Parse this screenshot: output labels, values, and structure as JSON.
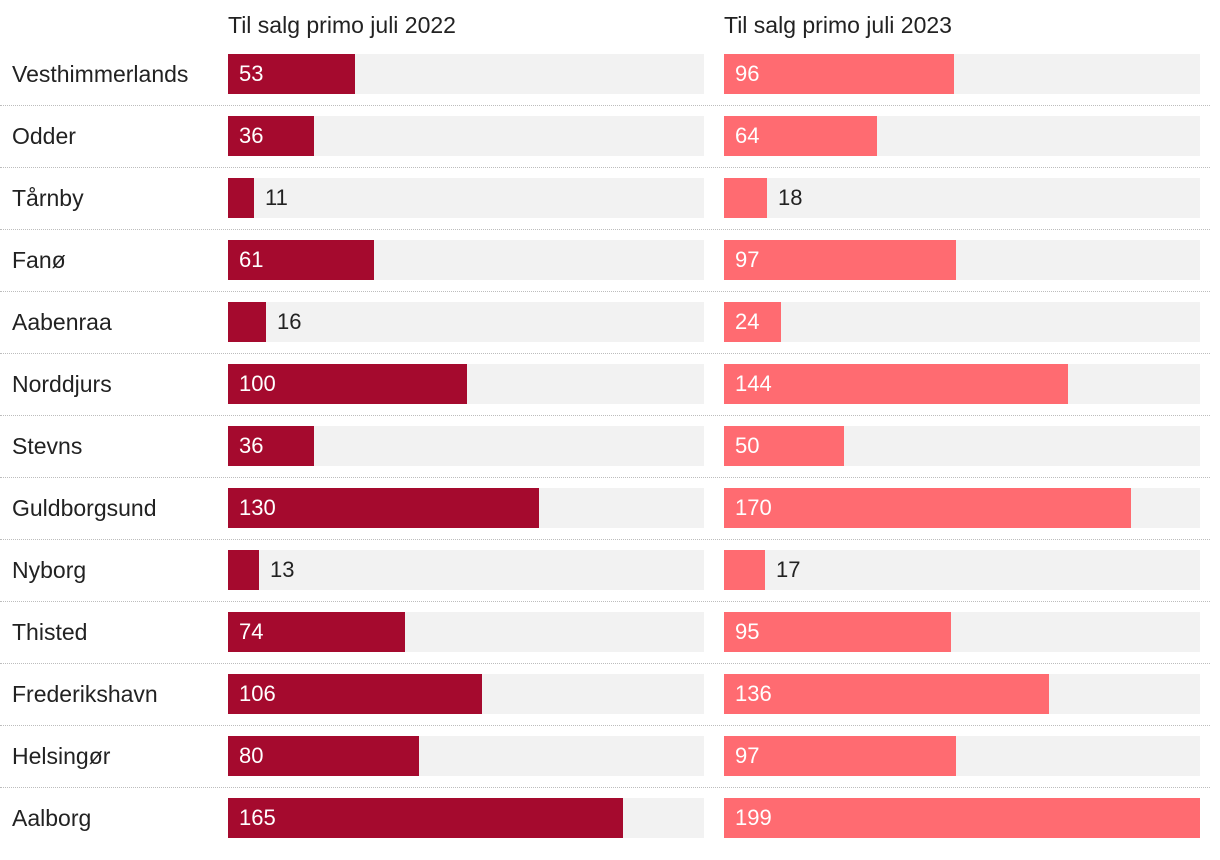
{
  "chart_data": {
    "type": "bar",
    "orientation": "horizontal",
    "title": "",
    "categories": [
      "Vesthimmerlands",
      "Odder",
      "Tårnby",
      "Fanø",
      "Aabenraa",
      "Norddjurs",
      "Stevns",
      "Guldborgsund",
      "Nyborg",
      "Thisted",
      "Frederikshavn",
      "Helsingør",
      "Aalborg"
    ],
    "series": [
      {
        "name": "Til salg primo juli 2022",
        "color": "#a50a2e",
        "values": [
          53,
          36,
          11,
          61,
          16,
          100,
          36,
          130,
          13,
          74,
          106,
          80,
          165
        ]
      },
      {
        "name": "Til salg primo juli 2023",
        "color": "#ff6b71",
        "values": [
          96,
          64,
          18,
          97,
          24,
          144,
          50,
          170,
          17,
          95,
          136,
          97,
          199
        ]
      }
    ],
    "xlim": [
      0,
      199
    ],
    "track_color": "#f2f2f2",
    "grid": false,
    "legend": "column-headers"
  }
}
